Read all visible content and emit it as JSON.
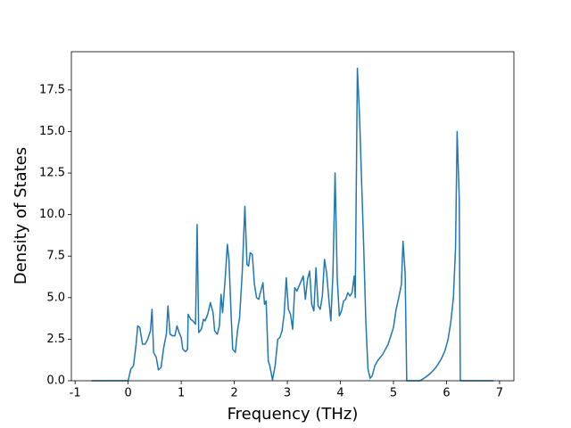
{
  "chart_data": {
    "type": "line",
    "x_label": "Frequency (THz)",
    "y_label": "Density of States",
    "x": [
      -0.69,
      -0.3,
      0.0,
      0.05,
      0.1,
      0.15,
      0.18,
      0.22,
      0.27,
      0.32,
      0.37,
      0.42,
      0.45,
      0.48,
      0.53,
      0.57,
      0.62,
      0.67,
      0.72,
      0.75,
      0.79,
      0.84,
      0.88,
      0.92,
      0.96,
      1.0,
      1.03,
      1.08,
      1.12,
      1.13,
      1.18,
      1.22,
      1.27,
      1.3,
      1.33,
      1.38,
      1.42,
      1.45,
      1.5,
      1.55,
      1.6,
      1.63,
      1.68,
      1.72,
      1.75,
      1.78,
      1.83,
      1.87,
      1.9,
      1.94,
      1.97,
      2.02,
      2.06,
      2.1,
      2.15,
      2.2,
      2.24,
      2.27,
      2.3,
      2.34,
      2.38,
      2.42,
      2.46,
      2.5,
      2.54,
      2.57,
      2.6,
      2.64,
      2.67,
      2.72,
      2.77,
      2.82,
      2.86,
      2.9,
      2.94,
      2.98,
      3.02,
      3.06,
      3.1,
      3.14,
      3.18,
      3.22,
      3.26,
      3.3,
      3.34,
      3.38,
      3.42,
      3.46,
      3.5,
      3.54,
      3.58,
      3.62,
      3.66,
      3.7,
      3.74,
      3.78,
      3.82,
      3.86,
      3.9,
      3.94,
      3.98,
      4.02,
      4.06,
      4.1,
      4.14,
      4.18,
      4.22,
      4.26,
      4.28,
      4.32,
      4.36,
      4.4,
      4.44,
      4.48,
      4.52,
      4.56,
      4.6,
      4.65,
      4.7,
      4.8,
      4.9,
      5.0,
      5.05,
      5.1,
      5.15,
      5.18,
      5.22,
      5.25,
      5.3,
      5.5,
      5.6,
      5.7,
      5.8,
      5.9,
      5.97,
      6.03,
      6.08,
      6.13,
      6.17,
      6.2,
      6.24,
      6.26,
      6.5,
      6.89
    ],
    "series": [
      {
        "color": "#1f77b4",
        "values": [
          0,
          0,
          0,
          0.7,
          0.9,
          2.2,
          3.3,
          3.2,
          2.2,
          2.2,
          2.5,
          3.0,
          4.3,
          1.7,
          1.4,
          0.65,
          0.8,
          2.0,
          2.8,
          4.5,
          2.8,
          2.7,
          2.7,
          3.3,
          2.9,
          2.6,
          1.9,
          1.75,
          1.9,
          4.0,
          3.7,
          3.6,
          3.4,
          9.4,
          2.9,
          3.1,
          3.7,
          3.6,
          4.0,
          4.7,
          4.1,
          3.0,
          2.8,
          3.3,
          5.2,
          4.1,
          6.2,
          8.2,
          7.3,
          4.0,
          1.9,
          1.7,
          3.0,
          3.8,
          6.5,
          10.5,
          7.0,
          6.9,
          7.7,
          7.6,
          5.8,
          5.0,
          4.9,
          5.4,
          5.9,
          4.6,
          4.8,
          1.2,
          0.9,
          0.05,
          0.9,
          2.5,
          2.6,
          3.0,
          4.0,
          6.2,
          4.3,
          4.0,
          3.1,
          5.6,
          5.4,
          5.7,
          6.0,
          6.3,
          4.9,
          6.1,
          6.6,
          4.6,
          4.2,
          6.8,
          4.5,
          4.3,
          5.1,
          7.3,
          6.5,
          5.0,
          3.6,
          6.5,
          12.5,
          6.2,
          3.9,
          4.2,
          4.8,
          4.9,
          5.3,
          5.1,
          5.3,
          6.3,
          5.0,
          18.8,
          16.0,
          12.0,
          8.0,
          3.5,
          0.7,
          0.15,
          0.3,
          0.9,
          1.2,
          1.6,
          2.2,
          3.2,
          4.3,
          5.0,
          5.8,
          8.4,
          6.5,
          0,
          0,
          0,
          0.2,
          0.45,
          0.8,
          1.3,
          1.8,
          2.5,
          3.5,
          5.0,
          8.0,
          15.0,
          11.0,
          0,
          0,
          0
        ]
      }
    ],
    "xlim": [
      -1.07,
      7.27
    ],
    "ylim": [
      0,
      19.8
    ],
    "xticks": [
      -1,
      0,
      1,
      2,
      3,
      4,
      5,
      6,
      7
    ],
    "yticks": [
      {
        "value": 0,
        "label": "0.0"
      },
      2.5,
      {
        "value": 5,
        "label": "5.0"
      },
      7.5,
      {
        "value": 10,
        "label": "10.0"
      },
      12.5,
      {
        "value": 15,
        "label": "15.0"
      },
      17.5
    ]
  }
}
